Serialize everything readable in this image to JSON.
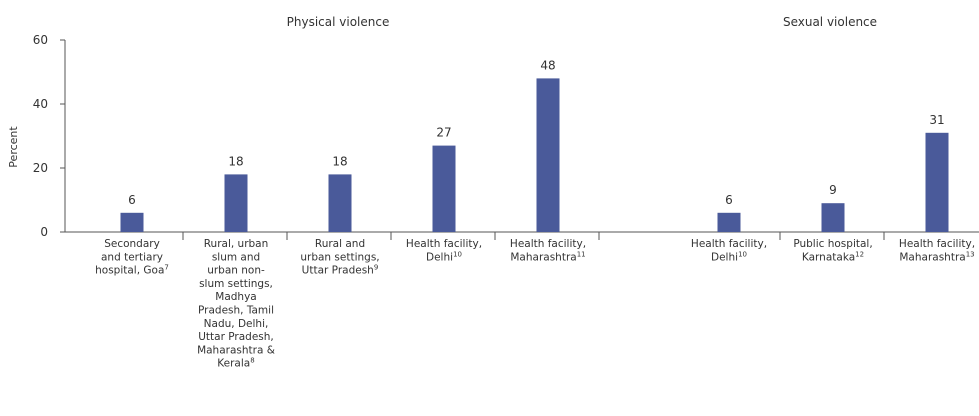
{
  "chart_data": {
    "type": "bar",
    "ylabel": "Percent",
    "ylim": [
      0,
      60
    ],
    "yticks": [
      "0",
      "20",
      "40",
      "60"
    ],
    "bar_color": "#4a5a9a",
    "grid": false,
    "groups": [
      {
        "title": "Physical violence",
        "bars": [
          {
            "label": [
              "Secondary",
              "and tertiary",
              "hospital, Goa"
            ],
            "ref": "7",
            "value": 6
          },
          {
            "label": [
              "Rural, urban",
              "slum and",
              "urban non-",
              "slum settings,",
              "Madhya",
              "Pradesh, Tamil",
              "Nadu, Delhi,",
              "Uttar Pradesh,",
              "Maharashtra &",
              "Kerala"
            ],
            "ref": "8",
            "value": 18
          },
          {
            "label": [
              "Rural and",
              "urban settings,",
              "Uttar Pradesh"
            ],
            "ref": "9",
            "value": 18
          },
          {
            "label": [
              "Health facility,",
              "Delhi"
            ],
            "ref": "10",
            "value": 27
          },
          {
            "label": [
              "Health facility,",
              "Maharashtra"
            ],
            "ref": "11",
            "value": 48
          }
        ]
      },
      {
        "title": "Sexual violence",
        "bars": [
          {
            "label": [
              "Health facility,",
              "Delhi"
            ],
            "ref": "10",
            "value": 6
          },
          {
            "label": [
              "Public hospital,",
              "Karnataka"
            ],
            "ref": "12",
            "value": 9
          },
          {
            "label": [
              "Health facility,",
              "Maharashtra"
            ],
            "ref": "13",
            "value": 31
          }
        ]
      }
    ]
  }
}
